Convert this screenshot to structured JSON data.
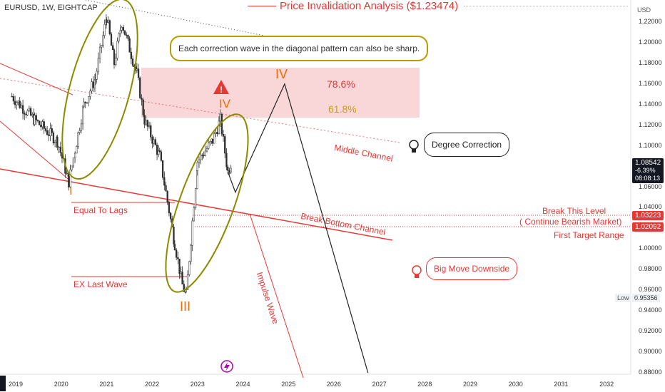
{
  "header": {
    "symbol": "EURUSD, 1W, EIGHTCAP",
    "title": "Price Invalidation Analysis ($1.23474)",
    "currency": "USD"
  },
  "annotations": {
    "diagonal_note": "Each correction wave in the diagonal pattern can also be sharp.",
    "fib_786": "78.6%",
    "fib_618": "61.8%",
    "wave_iv_big": "IV",
    "wave_iv_small": "IV",
    "wave_i": "I",
    "wave_iii": "III",
    "middle_channel": "Middle Channel",
    "degree_correction": "Degree Correction",
    "equal_to_lags": "Equal To Lags",
    "break_bottom_channel": "Break Bottom Channel",
    "break_this_level": "Break This Level",
    "continue_bearish": "( Continue Bearish Market)",
    "first_target": "First Target Range",
    "big_move": "Big Move Downside",
    "ex_last_wave": "EX Last Wave",
    "impulse_wave": "Impulse Wave",
    "warning_icon": "!"
  },
  "price_scale": {
    "ticks": [
      "1.22000",
      "1.20000",
      "1.18000",
      "1.16000",
      "1.14000",
      "1.12000",
      "1.10000",
      "1.06000",
      "1.04000",
      "1.00000",
      "0.98000",
      "0.96000",
      "0.94000",
      "0.92000",
      "0.90000",
      "0.88000"
    ],
    "current_price": "1.08542",
    "current_change": "-6.39%",
    "countdown": "08:08:13",
    "level_1": "1.03223",
    "level_2": "1.02092",
    "low_label": "Low",
    "low_value": "0.95356"
  },
  "time_scale": {
    "ticks": [
      "2019",
      "2020",
      "2021",
      "2022",
      "2023",
      "2024",
      "2025",
      "2026",
      "2027",
      "2028",
      "2029",
      "2030",
      "2031",
      "2032"
    ]
  },
  "colors": {
    "red": "#e53935",
    "orange": "#ef6c00",
    "gold": "#c9a100",
    "olive": "#8b8b00",
    "zone": "#f7c9cc"
  },
  "chart_data": {
    "type": "candlestick",
    "symbol": "EURUSD",
    "timeframe": "1W",
    "ylim": [
      0.88,
      1.23
    ],
    "x_range": [
      "2019",
      "2032"
    ],
    "price_path": [
      {
        "x": "2018-12",
        "y": 1.148
      },
      {
        "x": "2019-06",
        "y": 1.125
      },
      {
        "x": "2019-12",
        "y": 1.105
      },
      {
        "x": "2020-03",
        "y": 1.065
      },
      {
        "x": "2020-07",
        "y": 1.14
      },
      {
        "x": "2020-10",
        "y": 1.165
      },
      {
        "x": "2021-01",
        "y": 1.225
      },
      {
        "x": "2021-03",
        "y": 1.18
      },
      {
        "x": "2021-05",
        "y": 1.22
      },
      {
        "x": "2021-09",
        "y": 1.17
      },
      {
        "x": "2021-11",
        "y": 1.125
      },
      {
        "x": "2022-03",
        "y": 1.09
      },
      {
        "x": "2022-07",
        "y": 1.005
      },
      {
        "x": "2022-09",
        "y": 0.965
      },
      {
        "x": "2022-10",
        "y": 0.955
      },
      {
        "x": "2023-01",
        "y": 1.085
      },
      {
        "x": "2023-05",
        "y": 1.105
      },
      {
        "x": "2023-07",
        "y": 1.125
      },
      {
        "x": "2023-09",
        "y": 1.075
      },
      {
        "x": "2023-10",
        "y": 1.085
      }
    ],
    "projection": [
      {
        "x": "2023-11",
        "y": 1.055
      },
      {
        "x": "2024-12",
        "y": 1.16
      },
      {
        "x": "2026-10",
        "y": 0.88
      }
    ],
    "levels": {
      "break_level": 1.03223,
      "first_target": 1.02092,
      "current": 1.08542,
      "low": 0.95356,
      "invalidation": 1.23474
    },
    "fib_zone": {
      "from": 1.128,
      "to": 1.173
    }
  }
}
